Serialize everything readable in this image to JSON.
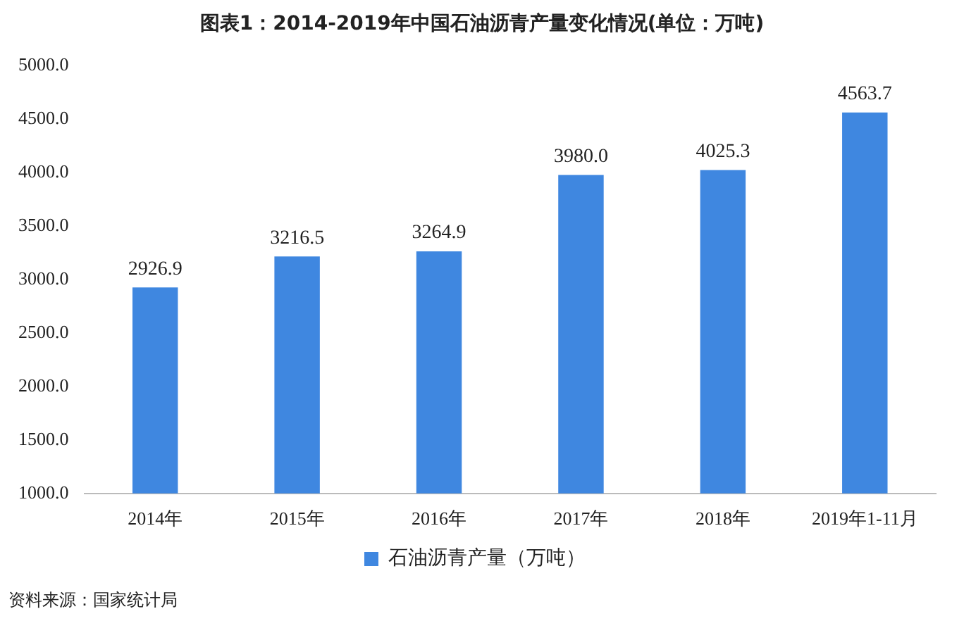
{
  "chart_data": {
    "type": "bar",
    "title": "图表1：2014-2019年中国石油沥青产量变化情况(单位：万吨)",
    "categories": [
      "2014年",
      "2015年",
      "2016年",
      "2017年",
      "2018年",
      "2019年1-11月"
    ],
    "series": [
      {
        "name": "石油沥青产量（万吨）",
        "color": "#3f87e0",
        "values": [
          2926.9,
          3216.5,
          3264.9,
          3980.0,
          4025.3,
          4563.7
        ]
      }
    ],
    "ylim": [
      1000,
      5000
    ],
    "yticks": [
      {
        "value": 1000,
        "label": "1000.0"
      },
      {
        "value": 1500,
        "label": "1500.0"
      },
      {
        "value": 2000,
        "label": "2000.0"
      },
      {
        "value": 2500,
        "label": "2500.0"
      },
      {
        "value": 3000,
        "label": "3000.0"
      },
      {
        "value": 3500,
        "label": "3500.0"
      },
      {
        "value": 4000,
        "label": "4000.0"
      },
      {
        "value": 4500,
        "label": "4500.0"
      },
      {
        "value": 5000,
        "label": "5000.0"
      }
    ],
    "value_labels": [
      "2926.9",
      "3216.5",
      "3264.9",
      "3980.0",
      "4025.3",
      "4563.7"
    ],
    "grid": false,
    "legend": "bottom",
    "annotations": [
      "资料来源：国家统计局"
    ]
  }
}
